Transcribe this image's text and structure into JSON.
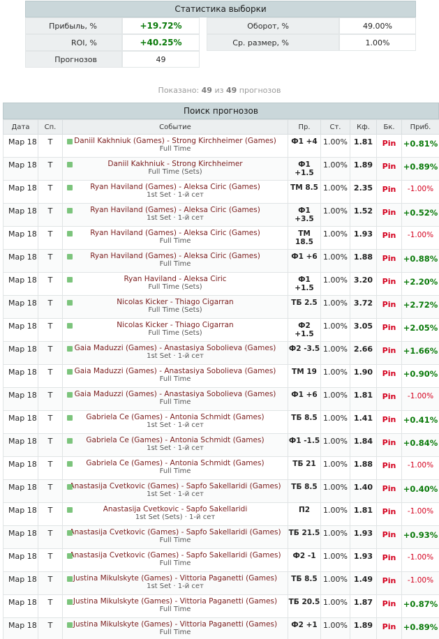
{
  "stats": {
    "title": "Статистика выборки",
    "profit_label": "Прибыль, %",
    "profit_value": "+19.72%",
    "roi_label": "ROI, %",
    "roi_value": "+40.25%",
    "count_label": "Прогнозов",
    "count_value": "49",
    "turnover_label": "Оборот, %",
    "turnover_value": "49.00%",
    "avg_label": "Ср. размер, %",
    "avg_value": "1.00%"
  },
  "shown": {
    "prefix": "Показано:",
    "count": "49",
    "of": "из",
    "total": "49",
    "suffix": "прогнозов"
  },
  "table": {
    "title": "Поиск прогнозов",
    "headers": [
      "Дата",
      "Сп.",
      "Событие",
      "Пр.",
      "Ст.",
      "Кф.",
      "Бк.",
      "Приб."
    ],
    "rows": [
      {
        "date": "Мар 18",
        "sport": "T",
        "event": "Daniil Kakhniuk (Games) - Strong Kirchheimer (Games)",
        "part": "Full Time",
        "pick": "Ф1 +4",
        "stake": "1.00%",
        "odds": "1.81",
        "bk": "Pin",
        "profit": "+0.81%",
        "sign": "pos"
      },
      {
        "date": "Мар 18",
        "sport": "T",
        "event": "Daniil Kakhniuk - Strong Kirchheimer",
        "part": "Full Time (Sets)",
        "pick": "Ф1 +1.5",
        "stake": "1.00%",
        "odds": "1.89",
        "bk": "Pin",
        "profit": "+0.89%",
        "sign": "pos"
      },
      {
        "date": "Мар 18",
        "sport": "T",
        "event": "Ryan Haviland (Games) - Aleksa Ciric (Games)",
        "part": "1st Set · 1-й сет",
        "pick": "ТМ 8.5",
        "stake": "1.00%",
        "odds": "2.35",
        "bk": "Pin",
        "profit": "-1.00%",
        "sign": "neg"
      },
      {
        "date": "Мар 18",
        "sport": "T",
        "event": "Ryan Haviland (Games) - Aleksa Ciric (Games)",
        "part": "1st Set · 1-й сет",
        "pick": "Ф1 +3.5",
        "stake": "1.00%",
        "odds": "1.52",
        "bk": "Pin",
        "profit": "+0.52%",
        "sign": "pos"
      },
      {
        "date": "Мар 18",
        "sport": "T",
        "event": "Ryan Haviland (Games) - Aleksa Ciric (Games)",
        "part": "Full Time",
        "pick": "ТМ 18.5",
        "stake": "1.00%",
        "odds": "1.93",
        "bk": "Pin",
        "profit": "-1.00%",
        "sign": "neg"
      },
      {
        "date": "Мар 18",
        "sport": "T",
        "event": "Ryan Haviland (Games) - Aleksa Ciric (Games)",
        "part": "Full Time",
        "pick": "Ф1 +6",
        "stake": "1.00%",
        "odds": "1.88",
        "bk": "Pin",
        "profit": "+0.88%",
        "sign": "pos"
      },
      {
        "date": "Мар 18",
        "sport": "T",
        "event": "Ryan Haviland - Aleksa Ciric",
        "part": "Full Time (Sets)",
        "pick": "Ф1 +1.5",
        "stake": "1.00%",
        "odds": "3.20",
        "bk": "Pin",
        "profit": "+2.20%",
        "sign": "pos"
      },
      {
        "date": "Мар 18",
        "sport": "T",
        "event": "Nicolas Kicker - Thiago Cigarran",
        "part": "Full Time (Sets)",
        "pick": "ТБ 2.5",
        "stake": "1.00%",
        "odds": "3.72",
        "bk": "Pin",
        "profit": "+2.72%",
        "sign": "pos"
      },
      {
        "date": "Мар 18",
        "sport": "T",
        "event": "Nicolas Kicker - Thiago Cigarran",
        "part": "Full Time (Sets)",
        "pick": "Ф2 +1.5",
        "stake": "1.00%",
        "odds": "3.05",
        "bk": "Pin",
        "profit": "+2.05%",
        "sign": "pos"
      },
      {
        "date": "Мар 18",
        "sport": "T",
        "event": "Gaia Maduzzi (Games) - Anastasiya Sobolieva (Games)",
        "part": "1st Set · 1-й сет",
        "pick": "Ф2 -3.5",
        "stake": "1.00%",
        "odds": "2.66",
        "bk": "Pin",
        "profit": "+1.66%",
        "sign": "pos"
      },
      {
        "date": "Мар 18",
        "sport": "T",
        "event": "Gaia Maduzzi (Games) - Anastasiya Sobolieva (Games)",
        "part": "Full Time",
        "pick": "ТМ 19",
        "stake": "1.00%",
        "odds": "1.90",
        "bk": "Pin",
        "profit": "+0.90%",
        "sign": "pos"
      },
      {
        "date": "Мар 18",
        "sport": "T",
        "event": "Gaia Maduzzi (Games) - Anastasiya Sobolieva (Games)",
        "part": "Full Time",
        "pick": "Ф1 +6",
        "stake": "1.00%",
        "odds": "1.81",
        "bk": "Pin",
        "profit": "-1.00%",
        "sign": "neg"
      },
      {
        "date": "Мар 18",
        "sport": "T",
        "event": "Gabriela Ce (Games) - Antonia Schmidt (Games)",
        "part": "1st Set · 1-й сет",
        "pick": "ТБ 8.5",
        "stake": "1.00%",
        "odds": "1.41",
        "bk": "Pin",
        "profit": "+0.41%",
        "sign": "pos"
      },
      {
        "date": "Мар 18",
        "sport": "T",
        "event": "Gabriela Ce (Games) - Antonia Schmidt (Games)",
        "part": "1st Set · 1-й сет",
        "pick": "Ф1 -1.5",
        "stake": "1.00%",
        "odds": "1.84",
        "bk": "Pin",
        "profit": "+0.84%",
        "sign": "pos"
      },
      {
        "date": "Мар 18",
        "sport": "T",
        "event": "Gabriela Ce (Games) - Antonia Schmidt (Games)",
        "part": "Full Time",
        "pick": "ТБ 21",
        "stake": "1.00%",
        "odds": "1.88",
        "bk": "Pin",
        "profit": "-1.00%",
        "sign": "neg"
      },
      {
        "date": "Мар 18",
        "sport": "T",
        "event": "Anastasija Cvetkovic (Games) - Sapfo Sakellaridi (Games)",
        "part": "1st Set · 1-й сет",
        "pick": "ТБ 8.5",
        "stake": "1.00%",
        "odds": "1.40",
        "bk": "Pin",
        "profit": "+0.40%",
        "sign": "pos"
      },
      {
        "date": "Мар 18",
        "sport": "T",
        "event": "Anastasija Cvetkovic - Sapfo Sakellaridi",
        "part": "1st Set (Sets) · 1-й сет",
        "pick": "П2",
        "stake": "1.00%",
        "odds": "1.81",
        "bk": "Pin",
        "profit": "-1.00%",
        "sign": "neg"
      },
      {
        "date": "Мар 18",
        "sport": "T",
        "event": "Anastasija Cvetkovic (Games) - Sapfo Sakellaridi (Games)",
        "part": "Full Time",
        "pick": "ТБ 21.5",
        "stake": "1.00%",
        "odds": "1.93",
        "bk": "Pin",
        "profit": "+0.93%",
        "sign": "pos"
      },
      {
        "date": "Мар 18",
        "sport": "T",
        "event": "Anastasija Cvetkovic (Games) - Sapfo Sakellaridi (Games)",
        "part": "Full Time",
        "pick": "Ф2 -1",
        "stake": "1.00%",
        "odds": "1.93",
        "bk": "Pin",
        "profit": "-1.00%",
        "sign": "neg"
      },
      {
        "date": "Мар 18",
        "sport": "T",
        "event": "Justina Mikulskyte (Games) - Vittoria Paganetti (Games)",
        "part": "1st Set · 1-й сет",
        "pick": "ТБ 8.5",
        "stake": "1.00%",
        "odds": "1.49",
        "bk": "Pin",
        "profit": "-1.00%",
        "sign": "neg"
      },
      {
        "date": "Мар 18",
        "sport": "T",
        "event": "Justina Mikulskyte (Games) - Vittoria Paganetti (Games)",
        "part": "Full Time",
        "pick": "ТБ 20.5",
        "stake": "1.00%",
        "odds": "1.87",
        "bk": "Pin",
        "profit": "+0.87%",
        "sign": "pos"
      },
      {
        "date": "Мар 18",
        "sport": "T",
        "event": "Justina Mikulskyte (Games) - Vittoria Paganetti (Games)",
        "part": "Full Time",
        "pick": "Ф2 +1",
        "stake": "1.00%",
        "odds": "1.89",
        "bk": "Pin",
        "profit": "+0.89%",
        "sign": "pos"
      }
    ]
  }
}
